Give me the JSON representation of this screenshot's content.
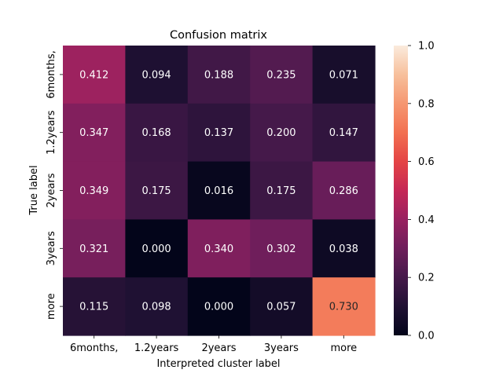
{
  "chart_data": {
    "type": "heatmap",
    "title": "Confusion matrix",
    "xlabel": "Interpreted cluster label",
    "ylabel": "True label",
    "x_categories": [
      "6months,",
      "1.2years",
      "2years",
      "3years",
      "more"
    ],
    "y_categories": [
      "6months,",
      "1.2years",
      "2years",
      "3years",
      "more"
    ],
    "values": [
      [
        0.412,
        0.094,
        0.188,
        0.235,
        0.071
      ],
      [
        0.347,
        0.168,
        0.137,
        0.2,
        0.147
      ],
      [
        0.349,
        0.175,
        0.016,
        0.175,
        0.286
      ],
      [
        0.321,
        0.0,
        0.34,
        0.302,
        0.038
      ],
      [
        0.115,
        0.098,
        0.0,
        0.057,
        0.73
      ]
    ],
    "value_format": "3 decimals",
    "colorbar": {
      "range": [
        0.0,
        1.0
      ],
      "ticks": [
        "0.0",
        "0.2",
        "0.4",
        "0.6",
        "0.8",
        "1.0"
      ],
      "colormap": "rocket",
      "placement": "right"
    }
  }
}
